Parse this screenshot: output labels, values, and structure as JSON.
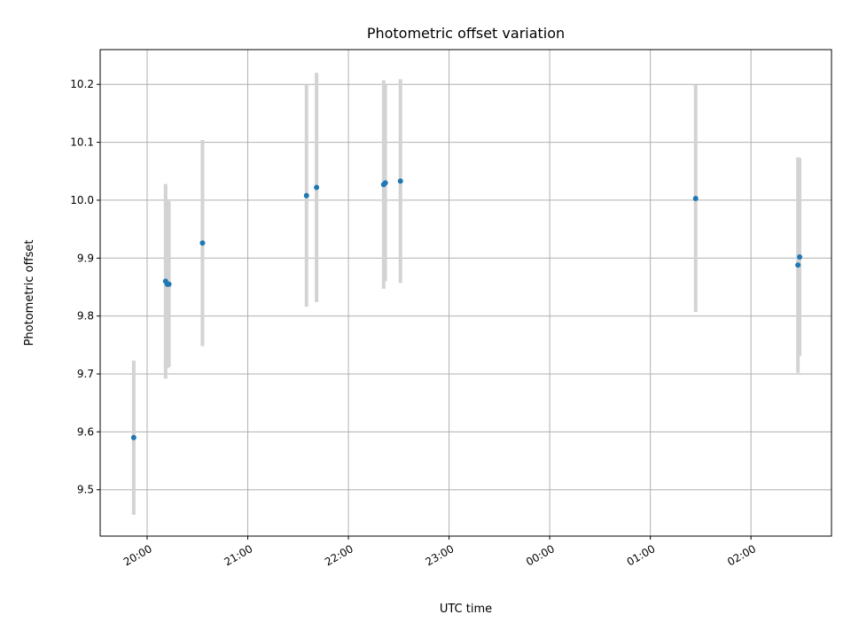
{
  "chart_data": {
    "type": "scatter",
    "title": "Photometric offset variation",
    "xlabel": "UTC time",
    "ylabel": "Photometric offset",
    "x_axis_type": "time",
    "xlim": [
      "2000-01-01T19:32:00",
      "2000-01-02T02:48:00"
    ],
    "ylim": [
      9.42,
      10.26
    ],
    "x_ticks": [
      {
        "value": "2000-01-01T20:00:00",
        "label": "20:00"
      },
      {
        "value": "2000-01-01T21:00:00",
        "label": "21:00"
      },
      {
        "value": "2000-01-01T22:00:00",
        "label": "22:00"
      },
      {
        "value": "2000-01-01T23:00:00",
        "label": "23:00"
      },
      {
        "value": "2000-01-02T00:00:00",
        "label": "00:00"
      },
      {
        "value": "2000-01-02T01:00:00",
        "label": "01:00"
      },
      {
        "value": "2000-01-02T02:00:00",
        "label": "02:00"
      }
    ],
    "y_ticks": [
      {
        "value": 9.5,
        "label": "9.5"
      },
      {
        "value": 9.6,
        "label": "9.6"
      },
      {
        "value": 9.7,
        "label": "9.7"
      },
      {
        "value": 9.8,
        "label": "9.8"
      },
      {
        "value": 9.9,
        "label": "9.9"
      },
      {
        "value": 10.0,
        "label": "10.0"
      },
      {
        "value": 10.1,
        "label": "10.1"
      },
      {
        "value": 10.2,
        "label": "10.2"
      }
    ],
    "grid": true,
    "marker_color": "#1f77b4",
    "errorbar_color": "#d3d3d3",
    "points": [
      {
        "x": "2000-01-01T19:52:00",
        "y": 9.59,
        "yerr": 0.133
      },
      {
        "x": "2000-01-01T20:11:00",
        "y": 9.86,
        "yerr": 0.168
      },
      {
        "x": "2000-01-01T20:12:00",
        "y": 9.855,
        "yerr": 0.145
      },
      {
        "x": "2000-01-01T20:13:00",
        "y": 9.855,
        "yerr": 0.143
      },
      {
        "x": "2000-01-01T20:33:00",
        "y": 9.926,
        "yerr": 0.178
      },
      {
        "x": "2000-01-01T21:35:00",
        "y": 10.008,
        "yerr": 0.192
      },
      {
        "x": "2000-01-01T21:41:00",
        "y": 10.022,
        "yerr": 0.198
      },
      {
        "x": "2000-01-01T22:21:00",
        "y": 10.027,
        "yerr": 0.18
      },
      {
        "x": "2000-01-01T22:22:00",
        "y": 10.03,
        "yerr": 0.17
      },
      {
        "x": "2000-01-01T22:31:00",
        "y": 10.033,
        "yerr": 0.176
      },
      {
        "x": "2000-01-02T01:27:00",
        "y": 10.003,
        "yerr": 0.196
      },
      {
        "x": "2000-01-02T02:28:00",
        "y": 9.888,
        "yerr": 0.186
      },
      {
        "x": "2000-01-02T02:29:00",
        "y": 9.902,
        "yerr": 0.171
      }
    ]
  }
}
